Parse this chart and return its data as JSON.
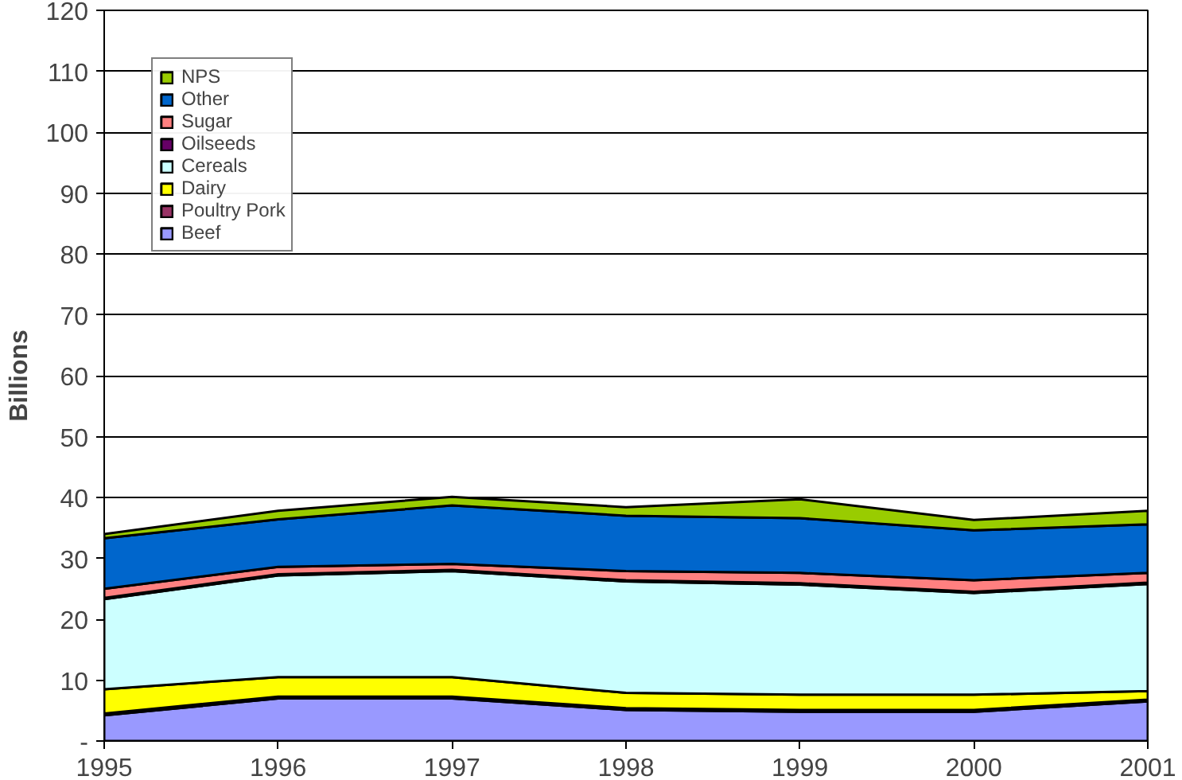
{
  "chart_data": {
    "type": "area",
    "stacked": true,
    "ylabel": "Billions",
    "x": [
      1995,
      1996,
      1997,
      1998,
      1999,
      2000,
      2001
    ],
    "xlim": [
      1995,
      2001
    ],
    "xticks": [
      1995,
      1996,
      1997,
      1998,
      1999,
      2000,
      2001
    ],
    "ylim": [
      0,
      120
    ],
    "yticks": [
      {
        "value": 0,
        "label": "-"
      },
      10,
      20,
      30,
      40,
      50,
      60,
      70,
      80,
      90,
      100,
      110,
      120
    ],
    "grid": "y",
    "legend": "top left",
    "series": [
      {
        "name": "Beef",
        "color": "#9999ff",
        "values": [
          4.2,
          7.0,
          7.0,
          5.1,
          4.8,
          4.8,
          6.5
        ]
      },
      {
        "name": "Poultry Pork",
        "color": "#993366",
        "values": [
          0.3,
          0.3,
          0.3,
          0.3,
          0.3,
          0.3,
          0.3
        ]
      },
      {
        "name": "Dairy",
        "color": "#ffff00",
        "values": [
          4.0,
          3.2,
          3.2,
          2.5,
          2.5,
          2.5,
          1.4
        ]
      },
      {
        "name": "Cereals",
        "color": "#ccffff",
        "values": [
          14.8,
          16.7,
          17.4,
          18.3,
          18.1,
          16.7,
          17.6
        ]
      },
      {
        "name": "Oilseeds",
        "color": "#660066",
        "values": [
          0.2,
          0.2,
          0.2,
          0.2,
          0.2,
          0.2,
          0.2
        ]
      },
      {
        "name": "Sugar",
        "color": "#ff8080",
        "values": [
          1.5,
          1.2,
          1.0,
          1.5,
          1.7,
          1.9,
          1.6
        ]
      },
      {
        "name": "Other",
        "color": "#0066cc",
        "values": [
          8.3,
          7.8,
          9.6,
          9.1,
          9.0,
          8.2,
          8.0
        ]
      },
      {
        "name": "NPS",
        "color": "#99cc00",
        "values": [
          0.7,
          1.4,
          1.4,
          1.4,
          3.1,
          1.7,
          2.2
        ]
      }
    ]
  }
}
